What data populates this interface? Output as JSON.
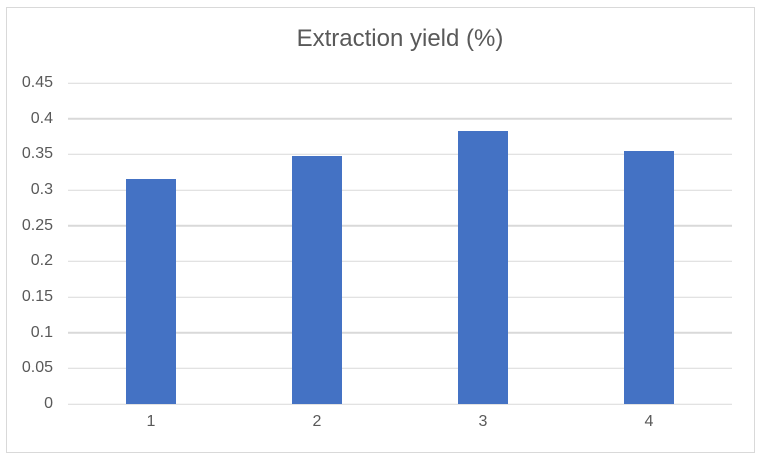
{
  "chart_data": {
    "type": "bar",
    "title": "Extraction yield (%)",
    "categories": [
      "1",
      "2",
      "3",
      "4"
    ],
    "values": [
      0.316,
      0.347,
      0.383,
      0.355
    ],
    "xlabel": "",
    "ylabel": "",
    "ylim": [
      0,
      0.45
    ],
    "yticks": [
      0,
      0.05,
      0.1,
      0.15,
      0.2,
      0.25,
      0.3,
      0.35,
      0.4,
      0.45
    ],
    "ytick_labels": [
      "0",
      "0.05",
      "0.1",
      "0.15",
      "0.2",
      "0.25",
      "0.3",
      "0.35",
      "0.4",
      "0.45"
    ],
    "grid": true,
    "legend": false,
    "bar_color": "#4472C4",
    "gridline_color": "#D9D9D9",
    "axis_line_color": "#D9D9D9",
    "text_color": "#595959",
    "border_color": "#D9D9D9",
    "background_color": "#FFFFFF"
  }
}
